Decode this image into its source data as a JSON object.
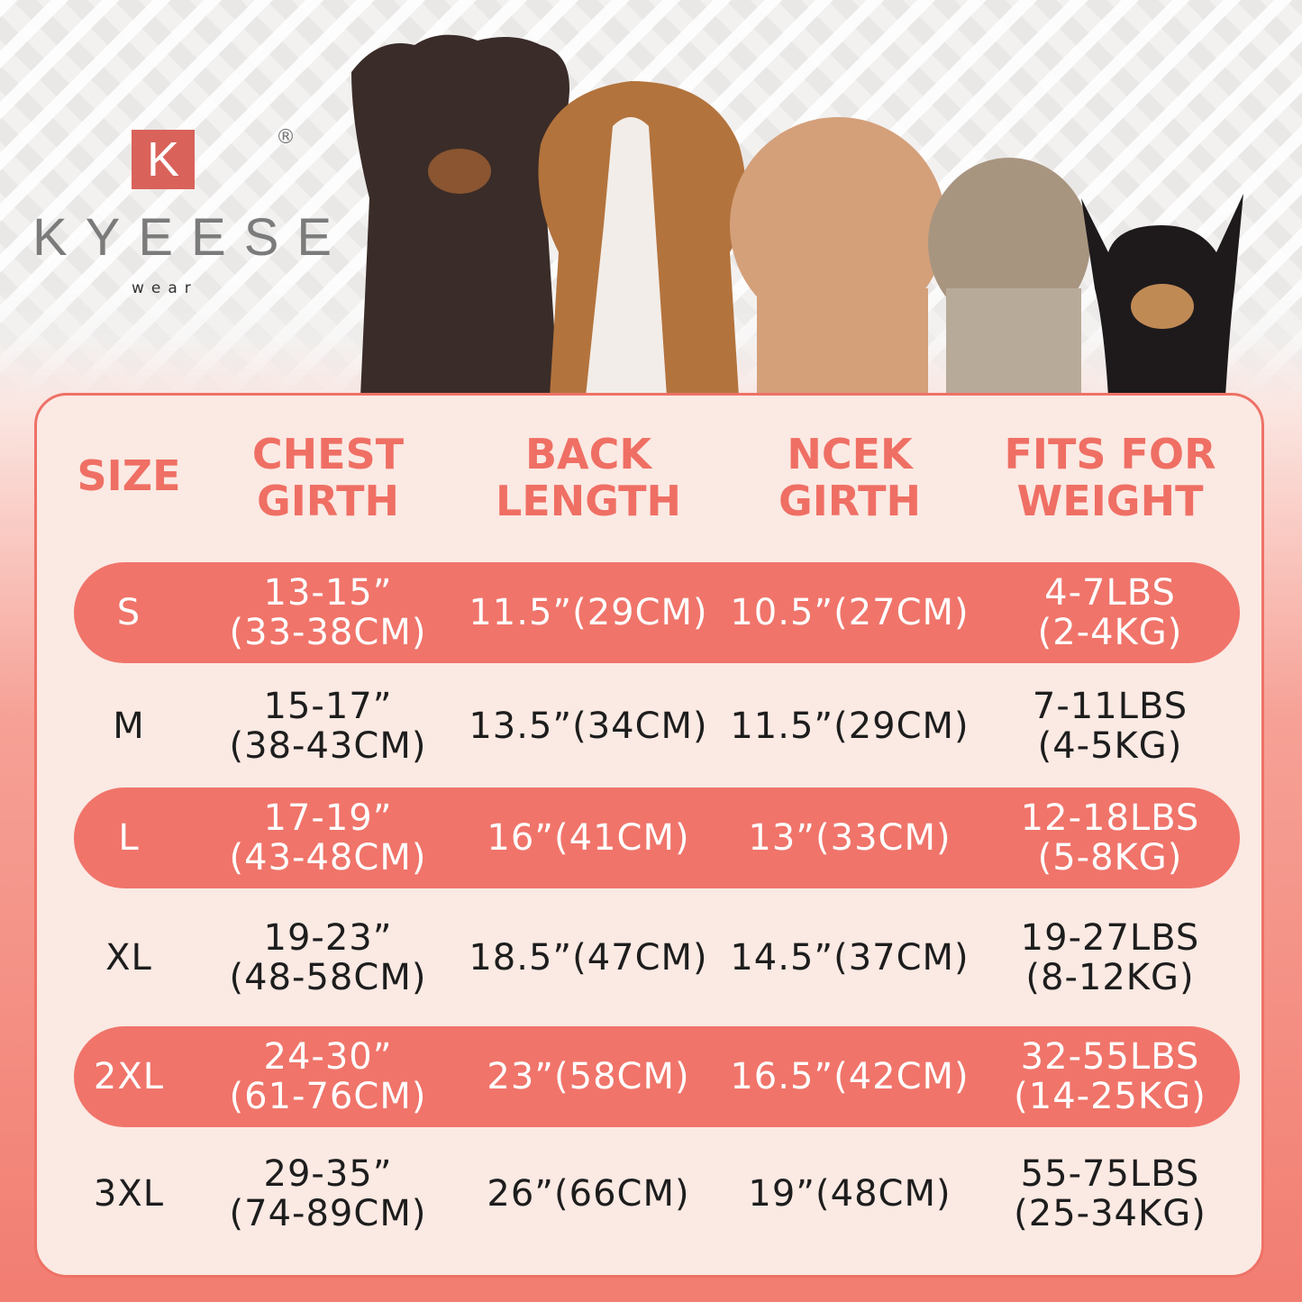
{
  "brand": {
    "logo_letter": "K",
    "name": "KYEESE",
    "sub": "wear",
    "registered": "®"
  },
  "headers": {
    "size": "SIZE",
    "chest": [
      "CHEST",
      "GIRTH"
    ],
    "back": [
      "BACK",
      "LENGTH"
    ],
    "neck": [
      "NCEK",
      "GIRTH"
    ],
    "weight": [
      "FITS FOR",
      "WEIGHT"
    ]
  },
  "rows": [
    {
      "size": "S",
      "chest": [
        "13-15”",
        "(33-38CM)"
      ],
      "back": "11.5”(29CM)",
      "neck": "10.5”(27CM)",
      "weight": [
        "4-7LBS",
        "(2-4KG)"
      ],
      "highlight": true
    },
    {
      "size": "M",
      "chest": [
        "15-17”",
        "(38-43CM)"
      ],
      "back": "13.5”(34CM)",
      "neck": "11.5”(29CM)",
      "weight": [
        "7-11LBS",
        "(4-5KG)"
      ],
      "highlight": false
    },
    {
      "size": "L",
      "chest": [
        "17-19”",
        "(43-48CM)"
      ],
      "back": "16”(41CM)",
      "neck": "13”(33CM)",
      "weight": [
        "12-18LBS",
        "(5-8KG)"
      ],
      "highlight": true
    },
    {
      "size": "XL",
      "chest": [
        "19-23”",
        "(48-58CM)"
      ],
      "back": "18.5”(47CM)",
      "neck": "14.5”(37CM)",
      "weight": [
        "19-27LBS",
        "(8-12KG)"
      ],
      "highlight": false
    },
    {
      "size": "2XL",
      "chest": [
        "24-30”",
        "(61-76CM)"
      ],
      "back": "23”(58CM)",
      "neck": "16.5”(42CM)",
      "weight": [
        "32-55LBS",
        "(14-25KG)"
      ],
      "highlight": true
    },
    {
      "size": "3XL",
      "chest": [
        "29-35”",
        "(74-89CM)"
      ],
      "back": "26”(66CM)",
      "neck": "19”(48CM)",
      "weight": [
        "55-75LBS",
        "(25-34KG)"
      ],
      "highlight": false
    }
  ],
  "colors": {
    "accent": "#f0746a",
    "card": "#fbe9e3",
    "text": "#1d1d1d"
  }
}
